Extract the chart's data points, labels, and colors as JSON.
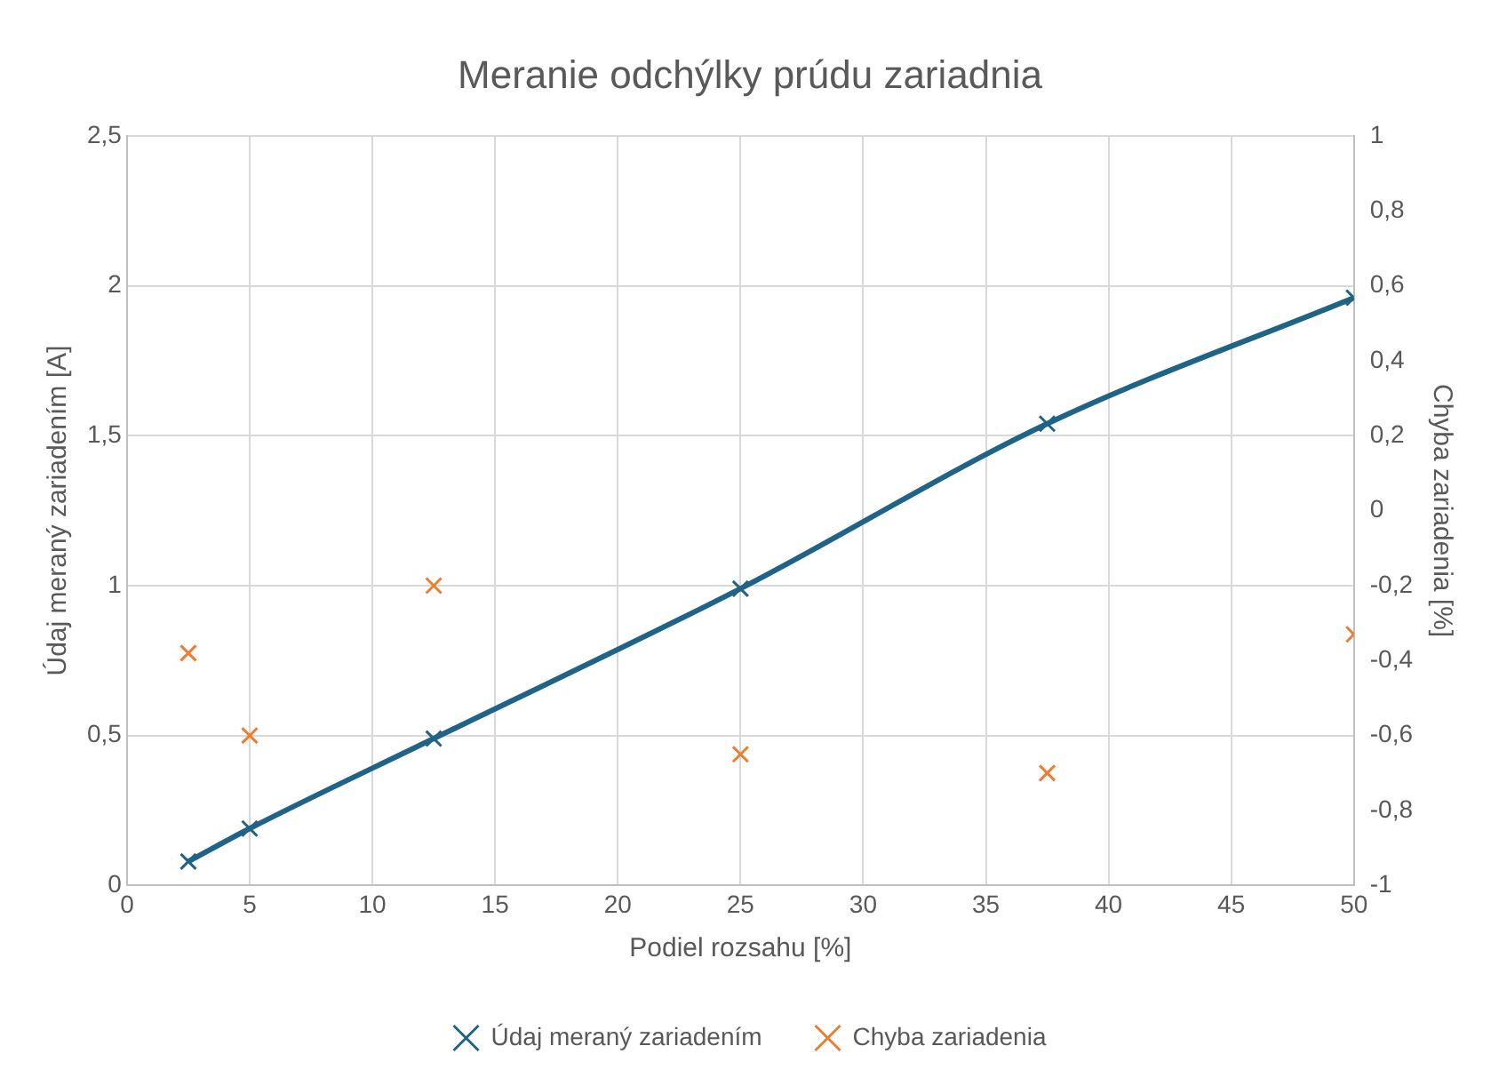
{
  "chart_data": {
    "type": "line",
    "title": "Meranie odchýlky prúdu zariadnia",
    "xlabel": "Podiel rozsahu [%]",
    "ylabel": "Údaj meraný zariadením [A]",
    "y2label": "Chyba zariadenia [%]",
    "x": [
      2.5,
      5,
      12.5,
      25,
      37.5,
      50
    ],
    "series": [
      {
        "name": "Údaj meraný zariadením",
        "color": "#1f6487",
        "type": "line",
        "values": [
          0.08,
          0.19,
          0.49,
          0.99,
          1.54,
          1.96
        ]
      },
      {
        "name": "Chyba zariadenia",
        "color": "#ed7d31",
        "type": "scatter",
        "axis": "y2",
        "values": [
          -0.38,
          -0.6,
          -0.2,
          -0.65,
          -0.7,
          -0.33
        ]
      }
    ],
    "xlim": [
      0,
      50
    ],
    "xticks": [
      0,
      5,
      10,
      15,
      20,
      25,
      30,
      35,
      40,
      45,
      50
    ],
    "ylim": [
      0,
      2.5
    ],
    "yticks": [
      0,
      {
        "value": 0.5,
        "label": "0,5"
      },
      1,
      {
        "value": 1.5,
        "label": "1,5"
      },
      2,
      {
        "value": 2.5,
        "label": "2,5"
      }
    ],
    "y2lim": [
      -1,
      1
    ],
    "y2ticks": [
      -1,
      {
        "value": -0.8,
        "label": "-0,8"
      },
      {
        "value": -0.6,
        "label": "-0,6"
      },
      {
        "value": -0.4,
        "label": "-0,4"
      },
      {
        "value": -0.2,
        "label": "-0,2"
      },
      0,
      {
        "value": 0.2,
        "label": "0,2"
      },
      {
        "value": 0.4,
        "label": "0,4"
      },
      {
        "value": 0.6,
        "label": "0,6"
      },
      {
        "value": 0.8,
        "label": "0,8"
      },
      1
    ],
    "grid": true,
    "legend": "bottom",
    "marker": "cross",
    "line_style": "solid"
  }
}
